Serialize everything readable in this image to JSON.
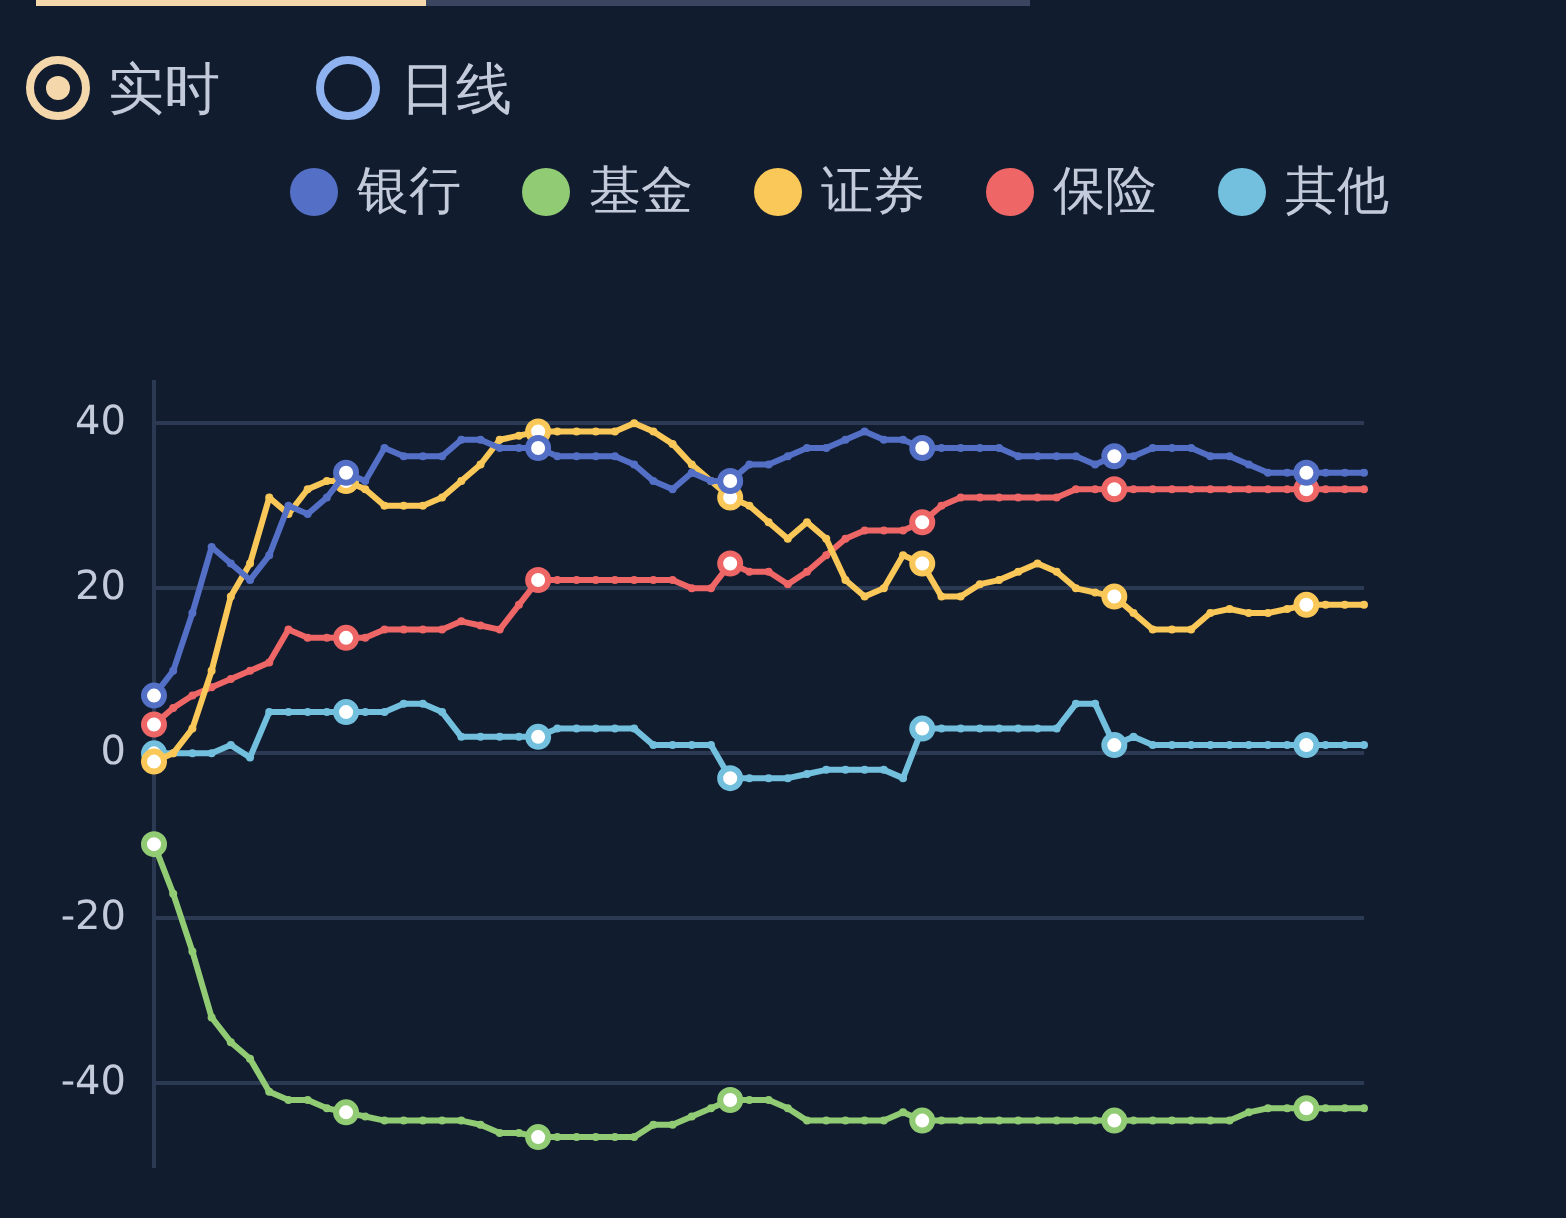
{
  "chart_data": {
    "type": "line",
    "categories": [
      null,
      null,
      null,
      null,
      null,
      null,
      null,
      null,
      null,
      null,
      null,
      null,
      null,
      null,
      null,
      null,
      null,
      null,
      null,
      null,
      null,
      null,
      null,
      null,
      null,
      null,
      null,
      null,
      null,
      null,
      null,
      null,
      null,
      null,
      null,
      null,
      null,
      null,
      null,
      null,
      null,
      null,
      null,
      null,
      null,
      null,
      null,
      null,
      null,
      null,
      null,
      null,
      null,
      null,
      null,
      null,
      null,
      null,
      null,
      null,
      null,
      null,
      null,
      null
    ],
    "series": [
      {
        "name": "银行",
        "color": "#5470c6",
        "values": [
          7,
          10,
          17,
          25,
          23,
          21,
          24,
          30,
          29,
          31,
          34,
          33,
          37,
          36,
          36,
          36,
          38,
          38,
          37,
          37,
          37,
          36,
          36,
          36,
          36,
          35,
          33,
          32,
          34,
          33,
          33,
          35,
          35,
          36,
          37,
          37,
          38,
          39,
          38,
          38,
          37,
          37,
          37,
          37,
          37,
          36,
          36,
          36,
          36,
          35,
          36,
          36,
          37,
          37,
          37,
          36,
          36,
          35,
          34,
          34,
          34,
          34,
          34,
          34
        ]
      },
      {
        "name": "基金",
        "color": "#91cc75",
        "values": [
          -11,
          -17,
          -24,
          -32,
          -35,
          -37,
          -41,
          -42,
          -42,
          -43,
          -43.5,
          -44,
          -44.5,
          -44.5,
          -44.5,
          -44.5,
          -44.5,
          -45,
          -46,
          -46,
          -46.5,
          -46.5,
          -46.5,
          -46.5,
          -46.5,
          -46.5,
          -45,
          -45,
          -44,
          -43,
          -42,
          -42,
          -42,
          -43,
          -44.5,
          -44.5,
          -44.5,
          -44.5,
          -44.5,
          -43.5,
          -44.5,
          -44.5,
          -44.5,
          -44.5,
          -44.5,
          -44.5,
          -44.5,
          -44.5,
          -44.5,
          -44.5,
          -44.5,
          -44.5,
          -44.5,
          -44.5,
          -44.5,
          -44.5,
          -44.5,
          -43.5,
          -43,
          -43,
          -43,
          -43,
          -43,
          -43
        ]
      },
      {
        "name": "证券",
        "color": "#fac858",
        "values": [
          -1,
          0,
          3,
          10,
          19,
          23,
          31,
          29,
          32,
          33,
          33,
          32,
          30,
          30,
          30,
          31,
          33,
          35,
          38,
          38.5,
          39,
          39,
          39,
          39,
          39,
          40,
          39,
          37.5,
          35,
          33,
          31,
          30,
          28,
          26,
          28,
          26,
          21,
          19,
          20,
          24,
          23,
          19,
          19,
          20.5,
          21,
          22,
          23,
          22,
          20,
          19.5,
          19,
          17,
          15,
          15,
          15,
          17,
          17.5,
          17,
          17,
          17.5,
          18,
          18,
          18,
          18
        ]
      },
      {
        "name": "保险",
        "color": "#ee6666",
        "values": [
          3.5,
          5.5,
          7,
          8,
          9,
          10,
          11,
          15,
          14,
          14,
          14,
          14,
          15,
          15,
          15,
          15,
          16,
          15.5,
          15,
          18,
          21,
          21,
          21,
          21,
          21,
          21,
          21,
          21,
          20,
          20,
          23,
          22,
          22,
          20.5,
          22,
          24,
          26,
          27,
          27,
          27,
          28,
          30,
          31,
          31,
          31,
          31,
          31,
          31,
          32,
          32,
          32,
          32,
          32,
          32,
          32,
          32,
          32,
          32,
          32,
          32,
          32,
          32,
          32,
          32
        ]
      },
      {
        "name": "其他",
        "color": "#73c0de",
        "values": [
          0,
          0,
          0,
          0,
          1,
          -0.5,
          5,
          5,
          5,
          5,
          5,
          5,
          5,
          6,
          6,
          5,
          2,
          2,
          2,
          2,
          2,
          3,
          3,
          3,
          3,
          3,
          1,
          1,
          1,
          1,
          -3,
          -3,
          -3,
          -3,
          -2.5,
          -2,
          -2,
          -2,
          -2,
          -3,
          3,
          3,
          3,
          3,
          3,
          3,
          3,
          3,
          6,
          6,
          1,
          2,
          1,
          1,
          1,
          1,
          1,
          1,
          1,
          1,
          1,
          1,
          1,
          1
        ]
      }
    ],
    "annotations": [
      "实时",
      "日线"
    ],
    "ylim": [
      -50,
      45
    ],
    "yticks": [
      -40,
      -20,
      0,
      20,
      40
    ],
    "grid": "y",
    "legend": "top",
    "marker": "circle",
    "line_style": "solid",
    "tick_labels": "y"
  }
}
